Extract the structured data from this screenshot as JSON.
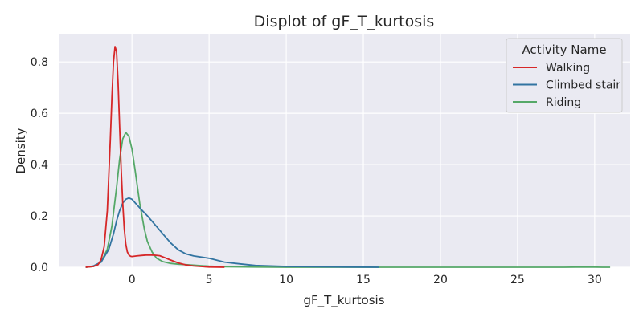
{
  "chart_data": {
    "type": "line",
    "title": "Displot of gF_T_kurtosis",
    "xlabel": "gF_T_kurtosis",
    "ylabel": "Density",
    "xlim": [
      -4.7,
      32.3
    ],
    "ylim": [
      0,
      0.91
    ],
    "xticks": [
      0,
      5,
      10,
      15,
      20,
      25,
      30
    ],
    "yticks": [
      0.0,
      0.2,
      0.4,
      0.6,
      0.8
    ],
    "ytick_labels": [
      "0.0",
      "0.2",
      "0.4",
      "0.6",
      "0.8"
    ],
    "grid": true,
    "background": "#eaeaf2",
    "legend": {
      "title": "Activity Name",
      "placement": "top-right"
    },
    "series": [
      {
        "name": "Walking",
        "color": "#d62728",
        "x": [
          -3.0,
          -2.5,
          -2.2,
          -2.0,
          -1.8,
          -1.6,
          -1.4,
          -1.3,
          -1.2,
          -1.1,
          -1.0,
          -0.9,
          -0.8,
          -0.7,
          -0.6,
          -0.5,
          -0.4,
          -0.3,
          -0.2,
          -0.1,
          0.0,
          0.3,
          0.6,
          1.0,
          1.5,
          1.8,
          2.1,
          2.5,
          3.0,
          3.5,
          4.0,
          5.0,
          6.0
        ],
        "y": [
          0.0,
          0.003,
          0.01,
          0.03,
          0.08,
          0.22,
          0.5,
          0.66,
          0.8,
          0.86,
          0.84,
          0.72,
          0.55,
          0.38,
          0.25,
          0.15,
          0.09,
          0.06,
          0.048,
          0.043,
          0.042,
          0.044,
          0.046,
          0.048,
          0.047,
          0.045,
          0.038,
          0.028,
          0.017,
          0.009,
          0.005,
          0.001,
          0.0
        ]
      },
      {
        "name": "Climbed stair",
        "color": "#3274a1",
        "x": [
          -3.0,
          -2.5,
          -2.0,
          -1.5,
          -1.2,
          -1.0,
          -0.8,
          -0.6,
          -0.4,
          -0.2,
          0.0,
          0.3,
          0.6,
          1.0,
          1.5,
          2.0,
          2.5,
          3.0,
          3.5,
          4.0,
          5.0,
          6.0,
          7.0,
          8.0,
          9.0,
          10.0,
          12.0,
          14.0,
          16.0
        ],
        "y": [
          0.0,
          0.005,
          0.02,
          0.07,
          0.13,
          0.18,
          0.22,
          0.25,
          0.265,
          0.27,
          0.265,
          0.245,
          0.225,
          0.2,
          0.165,
          0.13,
          0.095,
          0.068,
          0.052,
          0.044,
          0.035,
          0.02,
          0.013,
          0.007,
          0.005,
          0.003,
          0.002,
          0.001,
          0.0
        ]
      },
      {
        "name": "Riding",
        "color": "#55a868",
        "x": [
          -3.0,
          -2.5,
          -2.0,
          -1.6,
          -1.3,
          -1.0,
          -0.8,
          -0.6,
          -0.4,
          -0.2,
          0.0,
          0.2,
          0.5,
          0.8,
          1.0,
          1.3,
          1.6,
          2.0,
          2.5,
          3.0,
          4.0,
          5.0,
          6.0,
          8.0,
          10.0,
          15.0,
          20.0,
          25.0,
          28.0,
          29.5,
          30.5,
          31.0
        ],
        "y": [
          0.0,
          0.003,
          0.02,
          0.07,
          0.16,
          0.31,
          0.42,
          0.5,
          0.525,
          0.51,
          0.46,
          0.38,
          0.25,
          0.15,
          0.1,
          0.06,
          0.035,
          0.022,
          0.015,
          0.012,
          0.008,
          0.004,
          0.002,
          0.001,
          0.0,
          0.0,
          0.0,
          0.0,
          0.0,
          0.001,
          0.0,
          0.0
        ]
      }
    ]
  }
}
